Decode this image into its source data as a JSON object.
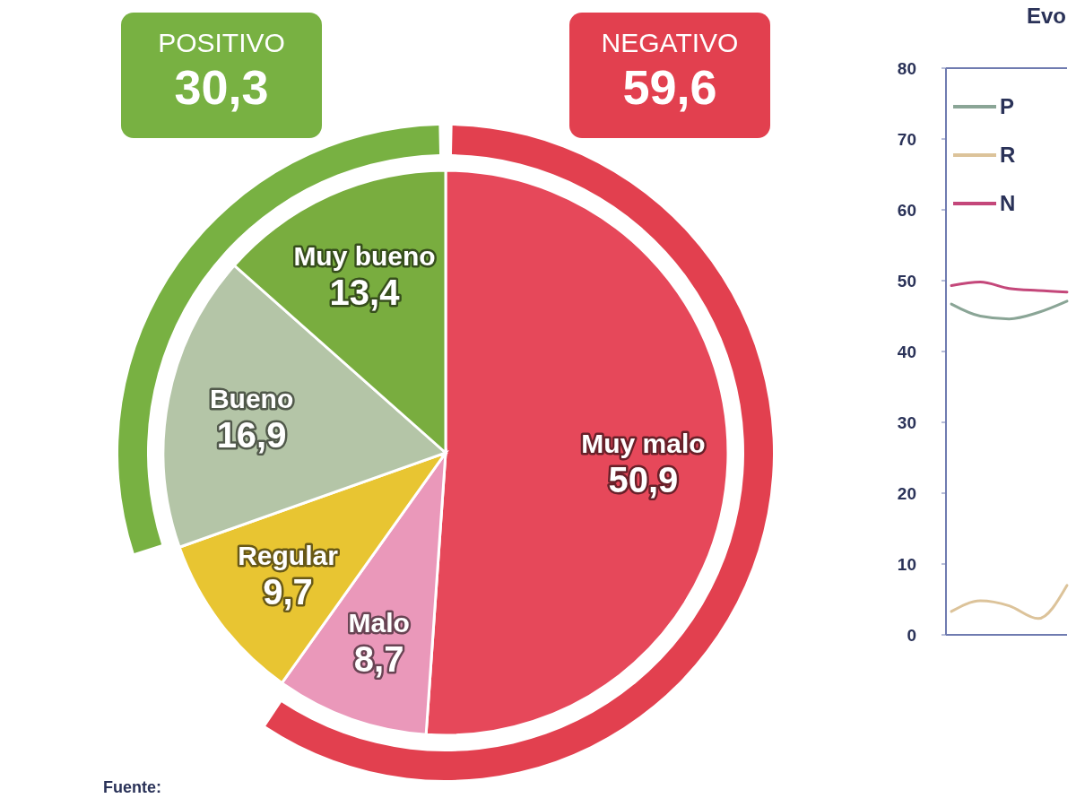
{
  "chart_data": [
    {
      "type": "pie",
      "categories": [
        "Muy malo",
        "Malo",
        "Regular",
        "Bueno",
        "Muy bueno"
      ],
      "values": [
        50.9,
        8.7,
        9.7,
        16.9,
        13.4
      ],
      "colors": [
        "#e6485a",
        "#ea98ba",
        "#e8c532",
        "#b4c5a7",
        "#79ad3f"
      ],
      "value_labels": [
        "50,9",
        "8,7",
        "9,7",
        "16,9",
        "13,4"
      ],
      "annotations": [
        "Fuente:"
      ]
    },
    {
      "type": "donut",
      "categories": [
        "NEGATIVO",
        "POSITIVO"
      ],
      "values": [
        59.6,
        30.3
      ],
      "colors": [
        "#e2404f",
        "#78b142"
      ],
      "value_labels": [
        "59,6",
        "30,3"
      ]
    },
    {
      "type": "line",
      "title": "Evo",
      "categories": [
        null,
        null,
        null,
        null,
        null
      ],
      "series": [
        {
          "name": "P",
          "color": "#8aa596",
          "values": [
            46.7,
            45.0,
            44.6,
            45.5,
            47.1
          ]
        },
        {
          "name": "R",
          "color": "#dcc39a",
          "values": [
            3.3,
            4.8,
            4.1,
            2.3,
            7.0
          ]
        },
        {
          "name": "N",
          "color": "#c4477a",
          "values": [
            49.3,
            49.8,
            48.9,
            48.6,
            48.4
          ]
        }
      ],
      "ylim": [
        0,
        80
      ],
      "yticks": [
        0,
        10,
        20,
        30,
        40,
        50,
        60,
        70,
        80
      ],
      "tick_labels": "y",
      "legend": "top left",
      "marker": "none",
      "line_style": "solid"
    }
  ]
}
